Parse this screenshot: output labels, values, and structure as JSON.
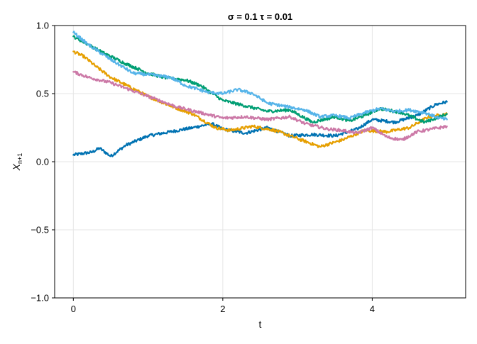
{
  "chart_data": {
    "type": "line",
    "title": "σ = 0.1 τ = 0.01",
    "xlabel": "t",
    "ylabel_main": "X",
    "ylabel_sub": "n+1",
    "xlim": [
      -0.25,
      5.25
    ],
    "ylim": [
      -1.0,
      1.0
    ],
    "xticks": [
      0,
      2,
      4
    ],
    "xtick_labels": [
      "0",
      "2",
      "4"
    ],
    "yticks": [
      -1.0,
      -0.5,
      0.0,
      0.5,
      1.0
    ],
    "ytick_labels": [
      "−1.0",
      "−0.5",
      "0.0",
      "0.5",
      "1.0"
    ],
    "grid": true,
    "series": [
      {
        "color": "#0072b2",
        "points": [
          [
            0,
            0.05
          ],
          [
            0.25,
            0.07
          ],
          [
            0.35,
            0.1
          ],
          [
            0.5,
            0.04
          ],
          [
            0.7,
            0.12
          ],
          [
            1.0,
            0.19
          ],
          [
            1.3,
            0.22
          ],
          [
            1.6,
            0.25
          ],
          [
            1.85,
            0.28
          ],
          [
            2.0,
            0.24
          ],
          [
            2.3,
            0.21
          ],
          [
            2.6,
            0.25
          ],
          [
            2.9,
            0.19
          ],
          [
            3.2,
            0.2
          ],
          [
            3.5,
            0.19
          ],
          [
            3.8,
            0.24
          ],
          [
            4.0,
            0.31
          ],
          [
            4.3,
            0.29
          ],
          [
            4.6,
            0.34
          ],
          [
            4.85,
            0.42
          ],
          [
            5.0,
            0.44
          ]
        ]
      },
      {
        "color": "#e69f00",
        "points": [
          [
            0,
            0.81
          ],
          [
            0.15,
            0.77
          ],
          [
            0.3,
            0.7
          ],
          [
            0.5,
            0.62
          ],
          [
            0.75,
            0.55
          ],
          [
            1.0,
            0.48
          ],
          [
            1.3,
            0.41
          ],
          [
            1.6,
            0.35
          ],
          [
            1.9,
            0.25
          ],
          [
            2.1,
            0.23
          ],
          [
            2.4,
            0.26
          ],
          [
            2.7,
            0.23
          ],
          [
            3.0,
            0.17
          ],
          [
            3.3,
            0.11
          ],
          [
            3.6,
            0.16
          ],
          [
            3.9,
            0.23
          ],
          [
            4.2,
            0.22
          ],
          [
            4.5,
            0.25
          ],
          [
            4.75,
            0.33
          ],
          [
            5.0,
            0.35
          ]
        ]
      },
      {
        "color": "#009e73",
        "points": [
          [
            0,
            0.92
          ],
          [
            0.2,
            0.86
          ],
          [
            0.4,
            0.8
          ],
          [
            0.7,
            0.72
          ],
          [
            1.0,
            0.65
          ],
          [
            1.2,
            0.62
          ],
          [
            1.5,
            0.6
          ],
          [
            1.7,
            0.56
          ],
          [
            2.0,
            0.45
          ],
          [
            2.3,
            0.41
          ],
          [
            2.6,
            0.37
          ],
          [
            2.9,
            0.38
          ],
          [
            3.2,
            0.29
          ],
          [
            3.5,
            0.33
          ],
          [
            3.7,
            0.3
          ],
          [
            3.9,
            0.34
          ],
          [
            4.1,
            0.39
          ],
          [
            4.4,
            0.36
          ],
          [
            4.7,
            0.29
          ],
          [
            5.0,
            0.35
          ]
        ]
      },
      {
        "color": "#cc79a7",
        "points": [
          [
            0,
            0.66
          ],
          [
            0.2,
            0.62
          ],
          [
            0.5,
            0.58
          ],
          [
            0.8,
            0.52
          ],
          [
            1.1,
            0.46
          ],
          [
            1.4,
            0.4
          ],
          [
            1.7,
            0.36
          ],
          [
            2.0,
            0.32
          ],
          [
            2.3,
            0.33
          ],
          [
            2.6,
            0.31
          ],
          [
            2.9,
            0.33
          ],
          [
            3.1,
            0.28
          ],
          [
            3.4,
            0.24
          ],
          [
            3.6,
            0.23
          ],
          [
            3.8,
            0.21
          ],
          [
            4.0,
            0.25
          ],
          [
            4.2,
            0.18
          ],
          [
            4.4,
            0.16
          ],
          [
            4.6,
            0.22
          ],
          [
            4.8,
            0.24
          ],
          [
            5.0,
            0.26
          ]
        ]
      },
      {
        "color": "#56b4e9",
        "points": [
          [
            0,
            0.95
          ],
          [
            0.2,
            0.86
          ],
          [
            0.5,
            0.75
          ],
          [
            0.8,
            0.65
          ],
          [
            1.0,
            0.64
          ],
          [
            1.3,
            0.62
          ],
          [
            1.5,
            0.56
          ],
          [
            1.8,
            0.51
          ],
          [
            2.0,
            0.5
          ],
          [
            2.2,
            0.53
          ],
          [
            2.4,
            0.5
          ],
          [
            2.6,
            0.43
          ],
          [
            2.9,
            0.4
          ],
          [
            3.1,
            0.38
          ],
          [
            3.3,
            0.33
          ],
          [
            3.5,
            0.34
          ],
          [
            3.7,
            0.32
          ],
          [
            3.9,
            0.36
          ],
          [
            4.1,
            0.39
          ],
          [
            4.3,
            0.37
          ],
          [
            4.5,
            0.38
          ],
          [
            4.7,
            0.36
          ],
          [
            4.9,
            0.32
          ],
          [
            5.0,
            0.31
          ]
        ]
      }
    ]
  }
}
